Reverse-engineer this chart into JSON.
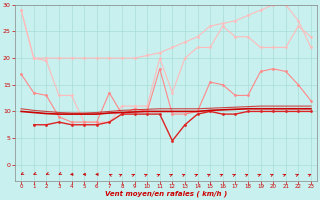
{
  "bg_color": "#c8f0ee",
  "grid_color": "#a8ddd8",
  "xlabel": "Vent moyen/en rafales ( km/h )",
  "xlabel_color": "#cc0000",
  "tick_color": "#cc0000",
  "xlim": [
    -0.5,
    23.5
  ],
  "ylim": [
    0,
    30
  ],
  "yticks": [
    0,
    5,
    10,
    15,
    20,
    25,
    30
  ],
  "xticks": [
    0,
    1,
    2,
    3,
    4,
    5,
    6,
    7,
    8,
    9,
    10,
    11,
    12,
    13,
    14,
    15,
    16,
    17,
    18,
    19,
    20,
    21,
    22,
    23
  ],
  "x": [
    0,
    1,
    2,
    3,
    4,
    5,
    6,
    7,
    8,
    9,
    10,
    11,
    12,
    13,
    14,
    15,
    16,
    17,
    18,
    19,
    20,
    21,
    22,
    23
  ],
  "y_light_smooth": [
    29,
    20,
    20,
    20,
    20,
    20,
    20,
    20,
    20,
    20,
    20.5,
    21,
    22,
    23,
    24,
    26,
    26.5,
    27,
    28,
    29,
    30,
    30,
    27,
    22
  ],
  "y_light_jagged": [
    29,
    20,
    19.5,
    13,
    13,
    8,
    8,
    8,
    11,
    11,
    11,
    20,
    13.5,
    20,
    22,
    22,
    26,
    24,
    24,
    22,
    22,
    22,
    26,
    24
  ],
  "y_mid_red": [
    17,
    13.5,
    13,
    9,
    8,
    8,
    8,
    13.5,
    9.5,
    10.5,
    10,
    18,
    9.5,
    9.5,
    10,
    15.5,
    15,
    13,
    13,
    17.5,
    18,
    17.5,
    15,
    12
  ],
  "y_dark_red": [
    null,
    7.5,
    7.5,
    8,
    7.5,
    7.5,
    7.5,
    8,
    9.5,
    9.5,
    9.5,
    9.5,
    4.5,
    7.5,
    9.5,
    10,
    9.5,
    9.5,
    10,
    10,
    10,
    10,
    10,
    10
  ],
  "y_trend1": [
    10,
    9.8,
    9.6,
    9.5,
    9.5,
    9.5,
    9.5,
    9.7,
    9.8,
    9.9,
    10,
    10,
    10,
    10,
    10,
    10.2,
    10.3,
    10.4,
    10.5,
    10.5,
    10.5,
    10.5,
    10.5,
    10.5
  ],
  "y_trend2": [
    10.5,
    10.2,
    10.0,
    9.8,
    9.7,
    9.7,
    9.8,
    10.0,
    10.2,
    10.3,
    10.4,
    10.5,
    10.5,
    10.5,
    10.5,
    10.6,
    10.7,
    10.8,
    10.9,
    11.0,
    11.0,
    11.0,
    11.0,
    11.0
  ],
  "arrow_angles": [
    225,
    225,
    225,
    225,
    270,
    270,
    270,
    315,
    45,
    45,
    45,
    45,
    45,
    45,
    45,
    45,
    45,
    45,
    45,
    45,
    45,
    45,
    45,
    45
  ],
  "color_light": "#ffbbbb",
  "color_mid": "#ff8888",
  "color_dark": "#dd2222",
  "color_darkest": "#cc0000",
  "color_trend": "#cc0000"
}
